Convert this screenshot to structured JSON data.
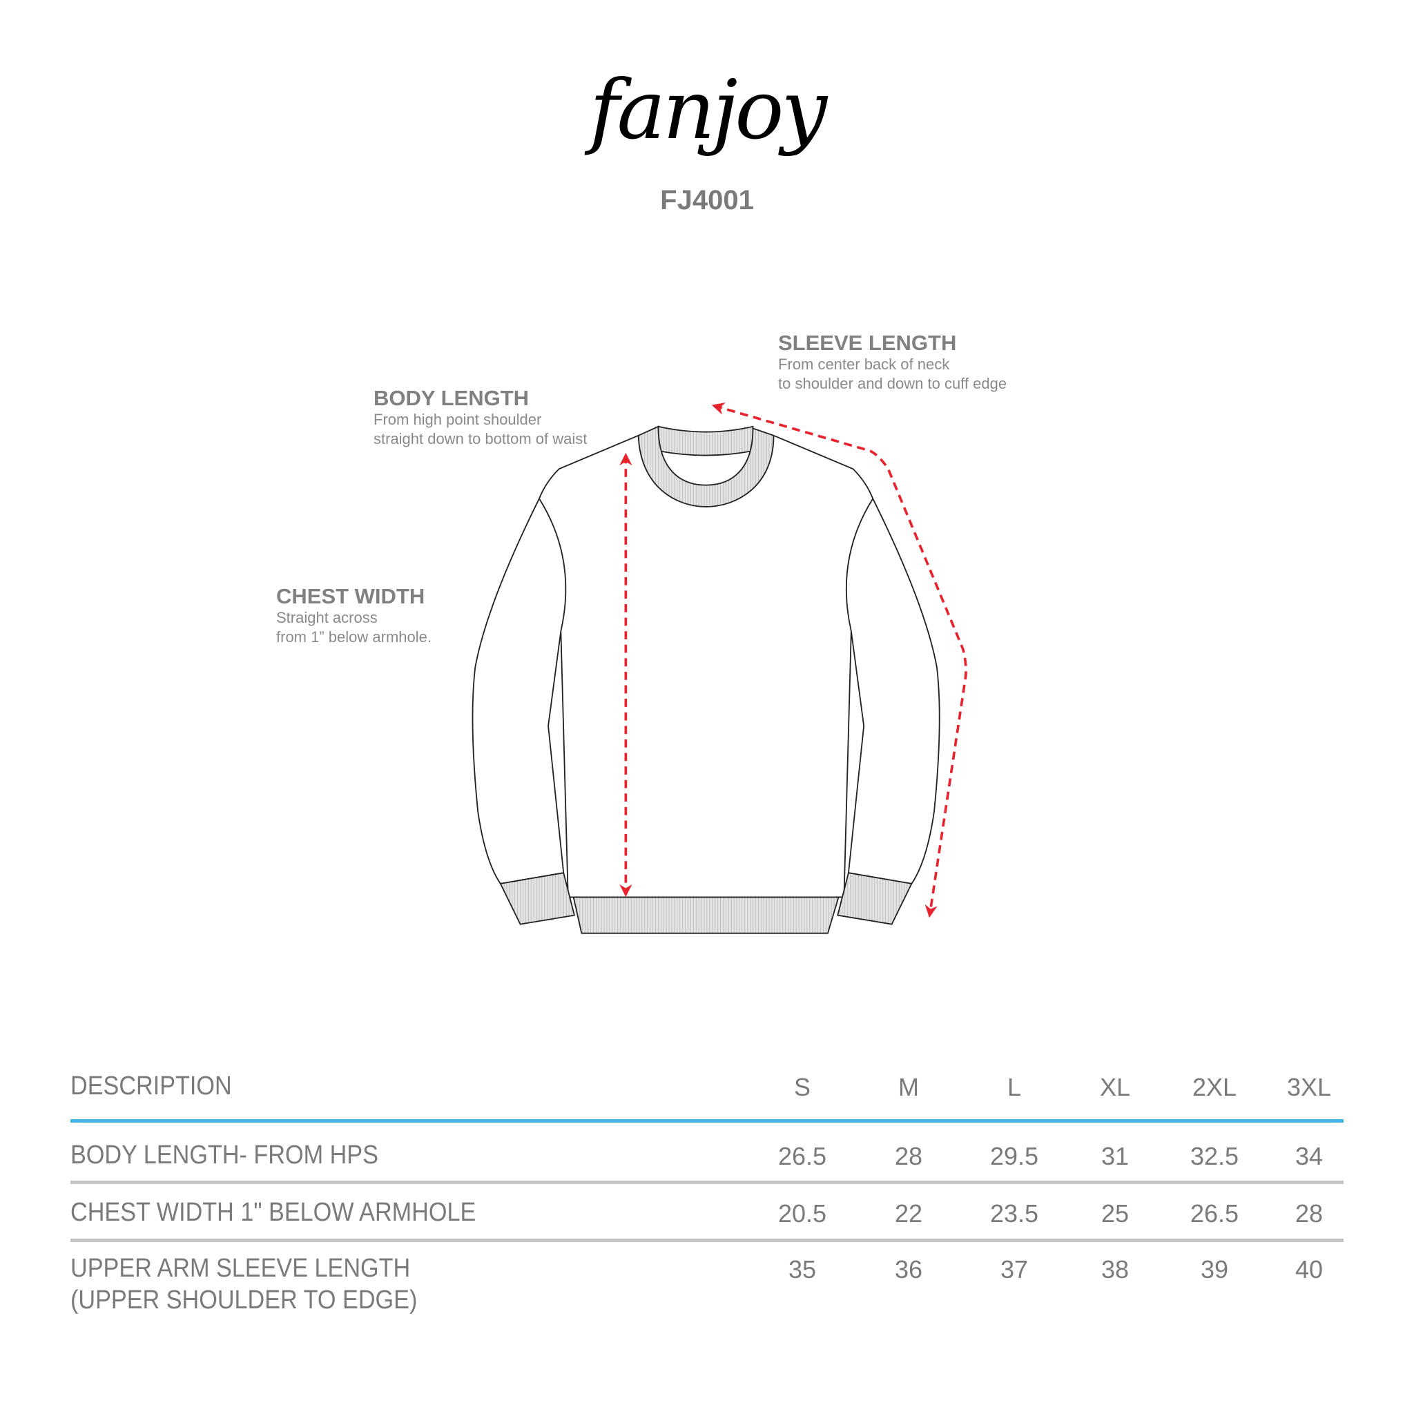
{
  "brand": {
    "logo_text": "fanjoy",
    "style_code": "FJ4001"
  },
  "callouts": {
    "sleeve_length": {
      "title": "SLEEVE LENGTH",
      "lines": [
        "From center back of neck",
        "to shoulder and down to cuff edge"
      ]
    },
    "body_length": {
      "title": "BODY LENGTH",
      "lines": [
        "From high point shoulder",
        "straight down to bottom of waist"
      ]
    },
    "chest_width": {
      "title": "CHEST WIDTH",
      "lines": [
        "Straight across",
        "from 1” below armhole."
      ]
    }
  },
  "colors": {
    "arrow": "#e8232d",
    "header_rule": "#45b5e6",
    "row_rule": "#c4c4c4",
    "rib": "#d6d6d6"
  },
  "table": {
    "header": {
      "description": "DESCRIPTION",
      "sizes": [
        "S",
        "M",
        "L",
        "XL",
        "2XL",
        "3XL"
      ]
    },
    "rows": [
      {
        "label": [
          "BODY LENGTH- FROM HPS"
        ],
        "values": [
          "26.5",
          "28",
          "29.5",
          "31",
          "32.5",
          "34"
        ]
      },
      {
        "label": [
          "CHEST WIDTH 1\" BELOW  ARMHOLE"
        ],
        "values": [
          "20.5",
          "22",
          "23.5",
          "25",
          "26.5",
          "28"
        ]
      },
      {
        "label": [
          "UPPER ARM SLEEVE LENGTH",
          "(UPPER SHOULDER TO EDGE)"
        ],
        "values": [
          "35",
          "36",
          "37",
          "38",
          "39",
          "40"
        ]
      }
    ]
  }
}
